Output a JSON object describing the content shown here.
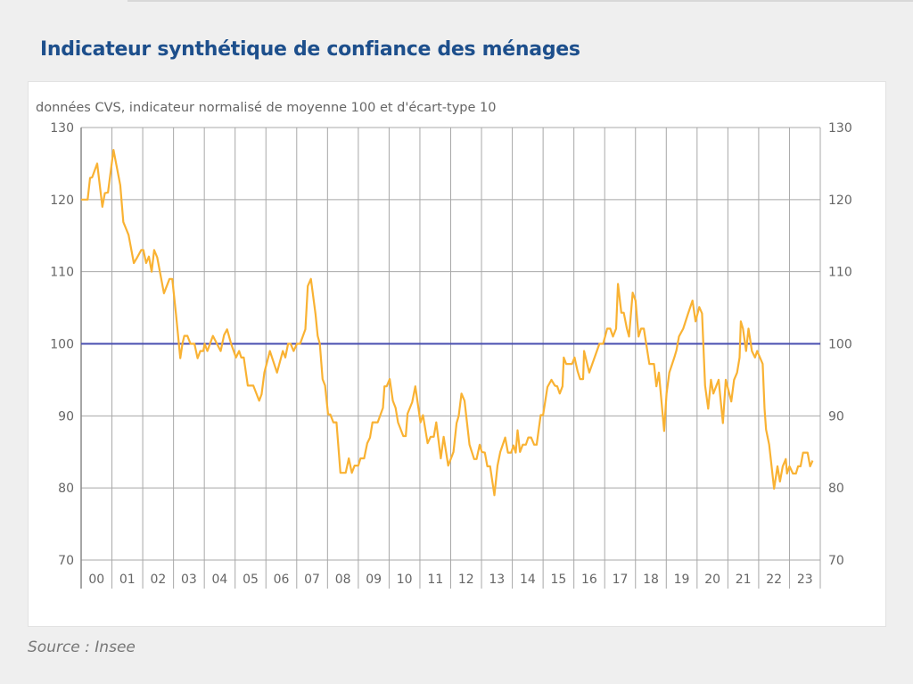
{
  "title": "Indicateur synthétique de confiance des ménages",
  "source": "Source : Insee",
  "chart_data": {
    "type": "line",
    "title": "Indicateur synthétique de confiance des ménages",
    "subtitle": "données CVS, indicateur normalisé de moyenne 100 et d'écart-type 10",
    "xlabel": "",
    "ylabel": "",
    "ylim": [
      70,
      130
    ],
    "xlim": [
      2000,
      2024
    ],
    "yticks": [
      70,
      80,
      90,
      100,
      110,
      120,
      130
    ],
    "xtick_labels": [
      "00",
      "01",
      "02",
      "03",
      "04",
      "05",
      "06",
      "07",
      "08",
      "09",
      "10",
      "11",
      "12",
      "13",
      "14",
      "15",
      "16",
      "17",
      "18",
      "19",
      "20",
      "21",
      "22",
      "23"
    ],
    "grid": true,
    "reference_line": {
      "value": 100,
      "color": "#4a4fb0"
    },
    "series": [
      {
        "name": "Indicateur synthétique",
        "color": "#f9b233",
        "points": [
          [
            0,
            120
          ],
          [
            0.21,
            120
          ],
          [
            0.29,
            123
          ],
          [
            0.36,
            123.1
          ],
          [
            0.52,
            125
          ],
          [
            0.69,
            119
          ],
          [
            0.77,
            120.9
          ],
          [
            0.87,
            121
          ],
          [
            1.05,
            126.9
          ],
          [
            1.27,
            122
          ],
          [
            1.37,
            116.9
          ],
          [
            1.54,
            115.1
          ],
          [
            1.71,
            111.2
          ],
          [
            1.81,
            111.9
          ],
          [
            1.95,
            113
          ],
          [
            2.02,
            113
          ],
          [
            2.11,
            111.2
          ],
          [
            2.2,
            112.1
          ],
          [
            2.29,
            110
          ],
          [
            2.37,
            113
          ],
          [
            2.47,
            112
          ],
          [
            2.69,
            107
          ],
          [
            2.87,
            109
          ],
          [
            2.96,
            109
          ],
          [
            3.08,
            104.1
          ],
          [
            3.22,
            98
          ],
          [
            3.29,
            100
          ],
          [
            3.35,
            101.1
          ],
          [
            3.45,
            101.1
          ],
          [
            3.55,
            100
          ],
          [
            3.68,
            100
          ],
          [
            3.78,
            98
          ],
          [
            3.87,
            99
          ],
          [
            3.97,
            99
          ],
          [
            4.01,
            100
          ],
          [
            4.1,
            99
          ],
          [
            4.28,
            101.1
          ],
          [
            4.41,
            100
          ],
          [
            4.53,
            99
          ],
          [
            4.64,
            101.2
          ],
          [
            4.74,
            102
          ],
          [
            4.87,
            100
          ],
          [
            5.03,
            98.1
          ],
          [
            5.13,
            99
          ],
          [
            5.2,
            98.1
          ],
          [
            5.28,
            98.1
          ],
          [
            5.41,
            94.2
          ],
          [
            5.59,
            94.2
          ],
          [
            5.78,
            92.1
          ],
          [
            5.86,
            93
          ],
          [
            5.95,
            96
          ],
          [
            6.13,
            99
          ],
          [
            6.36,
            96
          ],
          [
            6.55,
            99
          ],
          [
            6.63,
            98.1
          ],
          [
            6.72,
            100
          ],
          [
            6.8,
            100
          ],
          [
            6.9,
            99
          ],
          [
            7.01,
            100
          ],
          [
            7.11,
            100
          ],
          [
            7.28,
            102
          ],
          [
            7.36,
            108
          ],
          [
            7.46,
            109
          ],
          [
            7.61,
            104.1
          ],
          [
            7.68,
            101.1
          ],
          [
            7.75,
            100
          ],
          [
            7.84,
            95.1
          ],
          [
            7.92,
            94.2
          ],
          [
            8.02,
            90.2
          ],
          [
            8.09,
            90.2
          ],
          [
            8.19,
            89.1
          ],
          [
            8.29,
            89.1
          ],
          [
            8.42,
            82.1
          ],
          [
            8.59,
            82.1
          ],
          [
            8.69,
            84.1
          ],
          [
            8.79,
            82.1
          ],
          [
            8.88,
            83.1
          ],
          [
            9.0,
            83.1
          ],
          [
            9.07,
            84.1
          ],
          [
            9.19,
            84.1
          ],
          [
            9.29,
            86.2
          ],
          [
            9.38,
            87
          ],
          [
            9.46,
            89.1
          ],
          [
            9.63,
            89.1
          ],
          [
            9.8,
            91.1
          ],
          [
            9.85,
            94.1
          ],
          [
            9.92,
            94.1
          ],
          [
            10.02,
            95.1
          ],
          [
            10.12,
            92.1
          ],
          [
            10.21,
            91.1
          ],
          [
            10.29,
            89.1
          ],
          [
            10.46,
            87.2
          ],
          [
            10.54,
            87.2
          ],
          [
            10.6,
            90.3
          ],
          [
            10.75,
            91.9
          ],
          [
            10.85,
            94.1
          ],
          [
            11.02,
            89.1
          ],
          [
            11.1,
            90.1
          ],
          [
            11.25,
            86.2
          ],
          [
            11.35,
            87.1
          ],
          [
            11.45,
            87.1
          ],
          [
            11.53,
            89.1
          ],
          [
            11.68,
            84.1
          ],
          [
            11.77,
            87.1
          ],
          [
            11.92,
            83.1
          ],
          [
            12.09,
            85
          ],
          [
            12.19,
            89
          ],
          [
            12.26,
            90
          ],
          [
            12.35,
            93.1
          ],
          [
            12.45,
            92.1
          ],
          [
            12.61,
            86
          ],
          [
            12.76,
            84
          ],
          [
            12.84,
            84
          ],
          [
            12.94,
            86
          ],
          [
            13.01,
            85
          ],
          [
            13.11,
            84.9
          ],
          [
            13.19,
            83
          ],
          [
            13.28,
            83
          ],
          [
            13.42,
            79
          ],
          [
            13.52,
            83.1
          ],
          [
            13.61,
            85
          ],
          [
            13.77,
            87
          ],
          [
            13.86,
            84.9
          ],
          [
            13.96,
            84.9
          ],
          [
            14.04,
            85.9
          ],
          [
            14.11,
            84.9
          ],
          [
            14.17,
            88
          ],
          [
            14.25,
            85
          ],
          [
            14.34,
            86
          ],
          [
            14.44,
            86
          ],
          [
            14.52,
            87
          ],
          [
            14.61,
            87
          ],
          [
            14.71,
            86
          ],
          [
            14.79,
            86
          ],
          [
            14.92,
            90.1
          ],
          [
            15.0,
            90.1
          ],
          [
            15.14,
            94
          ],
          [
            15.27,
            95
          ],
          [
            15.38,
            94.2
          ],
          [
            15.46,
            94.1
          ],
          [
            15.54,
            93.1
          ],
          [
            15.63,
            94.1
          ],
          [
            15.67,
            98.1
          ],
          [
            15.75,
            97.2
          ],
          [
            15.94,
            97.2
          ],
          [
            16.02,
            98.1
          ],
          [
            16.12,
            96.2
          ],
          [
            16.2,
            95.1
          ],
          [
            16.3,
            95.1
          ],
          [
            16.33,
            99
          ],
          [
            16.5,
            96
          ],
          [
            16.83,
            100
          ],
          [
            16.95,
            100
          ],
          [
            17.08,
            102.1
          ],
          [
            17.18,
            102.1
          ],
          [
            17.27,
            101
          ],
          [
            17.37,
            102.1
          ],
          [
            17.43,
            108.3
          ],
          [
            17.54,
            104.3
          ],
          [
            17.62,
            104.3
          ],
          [
            17.72,
            102.1
          ],
          [
            17.79,
            101
          ],
          [
            17.91,
            107.1
          ],
          [
            18.0,
            106
          ],
          [
            18.1,
            101
          ],
          [
            18.18,
            102.1
          ],
          [
            18.27,
            102.1
          ],
          [
            18.45,
            97.2
          ],
          [
            18.6,
            97.2
          ],
          [
            18.68,
            94.1
          ],
          [
            18.76,
            96
          ],
          [
            18.93,
            87.9
          ],
          [
            19.01,
            93.1
          ],
          [
            19.1,
            96
          ],
          [
            19.26,
            98.1
          ],
          [
            19.33,
            99.1
          ],
          [
            19.41,
            101
          ],
          [
            19.55,
            102.1
          ],
          [
            19.7,
            104.1
          ],
          [
            19.85,
            106
          ],
          [
            19.95,
            103.1
          ],
          [
            20.07,
            105.1
          ],
          [
            20.16,
            104.2
          ],
          [
            20.26,
            94.2
          ],
          [
            20.36,
            91
          ],
          [
            20.45,
            95
          ],
          [
            20.53,
            93.1
          ],
          [
            20.7,
            95
          ],
          [
            20.84,
            89
          ],
          [
            20.93,
            95
          ],
          [
            21.11,
            92
          ],
          [
            21.2,
            95
          ],
          [
            21.3,
            96
          ],
          [
            21.38,
            98.1
          ],
          [
            21.42,
            103.1
          ],
          [
            21.49,
            102.1
          ],
          [
            21.59,
            99
          ],
          [
            21.67,
            102.1
          ],
          [
            21.78,
            99
          ],
          [
            21.88,
            98.1
          ],
          [
            21.95,
            99
          ],
          [
            22.13,
            97.2
          ],
          [
            22.19,
            91
          ],
          [
            22.24,
            88.1
          ],
          [
            22.34,
            86
          ],
          [
            22.5,
            79.9
          ],
          [
            22.61,
            83
          ],
          [
            22.69,
            80.9
          ],
          [
            22.78,
            83
          ],
          [
            22.88,
            84
          ],
          [
            22.92,
            82
          ],
          [
            23.0,
            83
          ],
          [
            23.11,
            82
          ],
          [
            23.21,
            82
          ],
          [
            23.28,
            83
          ],
          [
            23.36,
            83
          ],
          [
            23.44,
            84.9
          ],
          [
            23.59,
            84.9
          ],
          [
            23.67,
            83
          ],
          [
            23.75,
            83.8
          ]
        ]
      }
    ]
  }
}
